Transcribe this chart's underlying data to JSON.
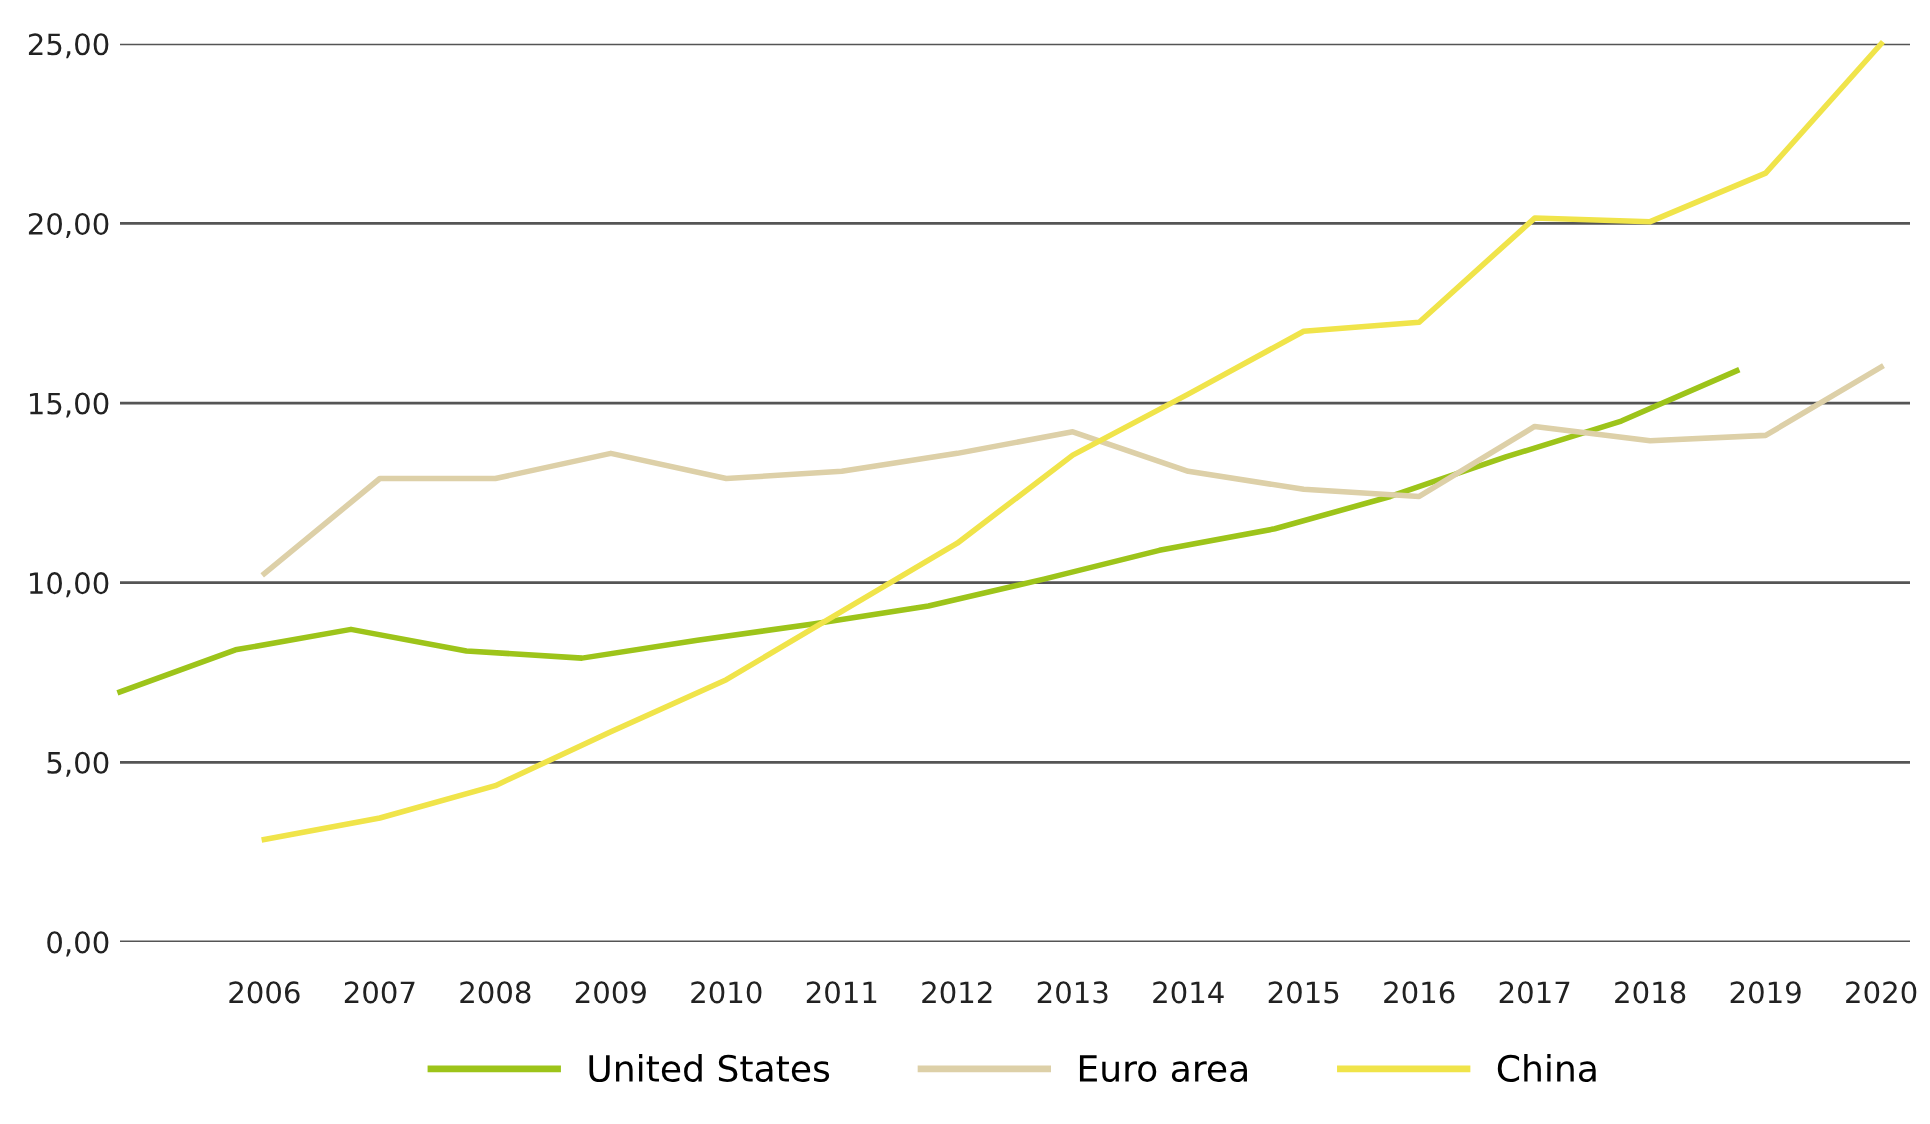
{
  "chart_data": {
    "type": "line",
    "xlim": [
      2004.75,
      2020.25
    ],
    "ylim": [
      0,
      25
    ],
    "xticks": [
      2006,
      2007,
      2008,
      2009,
      2010,
      2011,
      2012,
      2013,
      2014,
      2015,
      2016,
      2017,
      2018,
      2019,
      2020
    ],
    "yticks": [
      {
        "value": 0,
        "label": "0,00"
      },
      {
        "value": 5,
        "label": "5,00"
      },
      {
        "value": 10,
        "label": "10,00"
      },
      {
        "value": 15,
        "label": "15,00"
      },
      {
        "value": 20,
        "label": "20,00"
      },
      {
        "value": 25,
        "label": "25,00"
      }
    ],
    "grid": "y",
    "legend": "bottom",
    "marker": "none",
    "line_style": "solid",
    "series": [
      {
        "name": "United States",
        "color": "#9dc41a",
        "x": [
          2004.75,
          2005.75,
          2006.75,
          2007.75,
          2008.75,
          2009.75,
          2010.75,
          2011.75,
          2012.75,
          2013.75,
          2014.75,
          2015.75,
          2016.75,
          2017.75,
          2018.75
        ],
        "values": [
          6.96,
          8.13,
          8.7,
          8.1,
          7.9,
          8.4,
          8.85,
          9.35,
          10.1,
          10.9,
          11.5,
          12.4,
          13.5,
          14.5,
          15.9
        ]
      },
      {
        "name": "Euro area",
        "color": "#ddd0a8",
        "x": [
          2006,
          2007,
          2008,
          2009,
          2010,
          2011,
          2012,
          2013,
          2014,
          2015,
          2016,
          2017,
          2018,
          2019,
          2020
        ],
        "values": [
          10.25,
          12.9,
          12.9,
          13.6,
          12.9,
          13.1,
          13.6,
          14.2,
          13.1,
          12.6,
          12.4,
          14.35,
          13.95,
          14.1,
          16.0
        ]
      },
      {
        "name": "China",
        "color": "#f0e44a",
        "x": [
          2006,
          2007,
          2008,
          2009,
          2010,
          2011,
          2012,
          2013,
          2014,
          2015,
          2016,
          2017,
          2018,
          2019,
          2020
        ],
        "values": [
          2.85,
          3.45,
          4.35,
          5.85,
          7.3,
          9.2,
          11.1,
          13.55,
          15.25,
          17.0,
          17.25,
          20.15,
          20.05,
          21.4,
          25.0
        ]
      }
    ]
  }
}
